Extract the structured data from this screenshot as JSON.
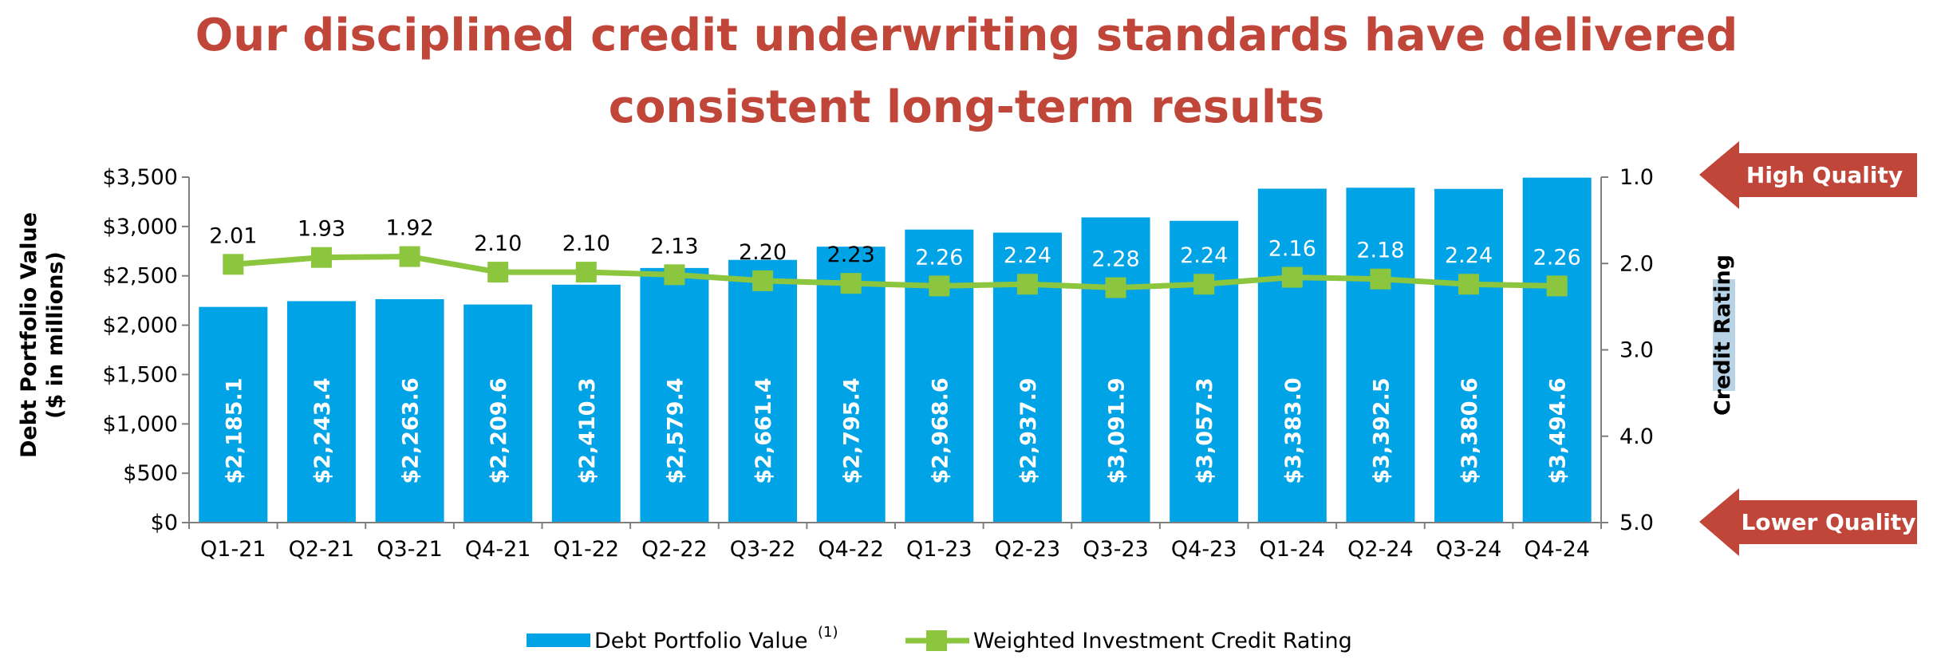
{
  "title": {
    "line1": "Our disciplined credit underwriting standards have delivered",
    "line2": "consistent long-term results"
  },
  "colors": {
    "title": "#C0463A",
    "bar": "#00A3E6",
    "line": "#8CC63F",
    "arrow": "#C0463A"
  },
  "chart_data": {
    "type": "bar",
    "categories": [
      "Q1-21",
      "Q2-21",
      "Q3-21",
      "Q4-21",
      "Q1-22",
      "Q2-22",
      "Q3-22",
      "Q4-22",
      "Q1-23",
      "Q2-23",
      "Q3-23",
      "Q4-23",
      "Q1-24",
      "Q2-24",
      "Q3-24",
      "Q4-24"
    ],
    "series": [
      {
        "name": "Debt Portfolio Value",
        "name_superscript": "(1)",
        "type": "bar",
        "axis": "left",
        "values": [
          2185.1,
          2243.4,
          2263.6,
          2209.6,
          2410.3,
          2579.4,
          2661.4,
          2795.4,
          2968.6,
          2937.9,
          3091.9,
          3057.3,
          3383.0,
          3392.5,
          3380.6,
          3494.6
        ],
        "labels": [
          "$2,185.1",
          "$2,243.4",
          "$2,263.6",
          "$2,209.6",
          "$2,410.3",
          "$2,579.4",
          "$2,661.4",
          "$2,795.4",
          "$2,968.6",
          "$2,937.9",
          "$3,091.9",
          "$3,057.3",
          "$3,383.0",
          "$3,392.5",
          "$3,380.6",
          "$3,494.6"
        ]
      },
      {
        "name": "Weighted Investment Credit Rating",
        "type": "line",
        "axis": "right",
        "values": [
          2.01,
          1.93,
          1.92,
          2.1,
          2.1,
          2.13,
          2.2,
          2.23,
          2.26,
          2.24,
          2.28,
          2.24,
          2.16,
          2.18,
          2.24,
          2.26
        ],
        "labels": [
          "2.01",
          "1.93",
          "1.92",
          "2.10",
          "2.10",
          "2.13",
          "2.20",
          "2.23",
          "2.26",
          "2.24",
          "2.28",
          "2.24",
          "2.16",
          "2.18",
          "2.24",
          "2.26"
        ]
      }
    ],
    "ylabel": "Debt Portfolio Value",
    "ylabel_line2": "($ in millions)",
    "ylim": [
      0,
      3500
    ],
    "yticks": [
      "$0",
      "$500",
      "$1,000",
      "$1,500",
      "$2,000",
      "$2,500",
      "$3,000",
      "$3,500"
    ],
    "y2label": "Credit Rating",
    "y2lim": [
      1.0,
      5.0
    ],
    "y2_inverted": true,
    "y2ticks": [
      "1.0",
      "2.0",
      "3.0",
      "4.0",
      "5.0"
    ],
    "annotations": {
      "high": "High Quality",
      "low": "Lower Quality"
    },
    "legend_position": "bottom-center",
    "grid": false
  }
}
